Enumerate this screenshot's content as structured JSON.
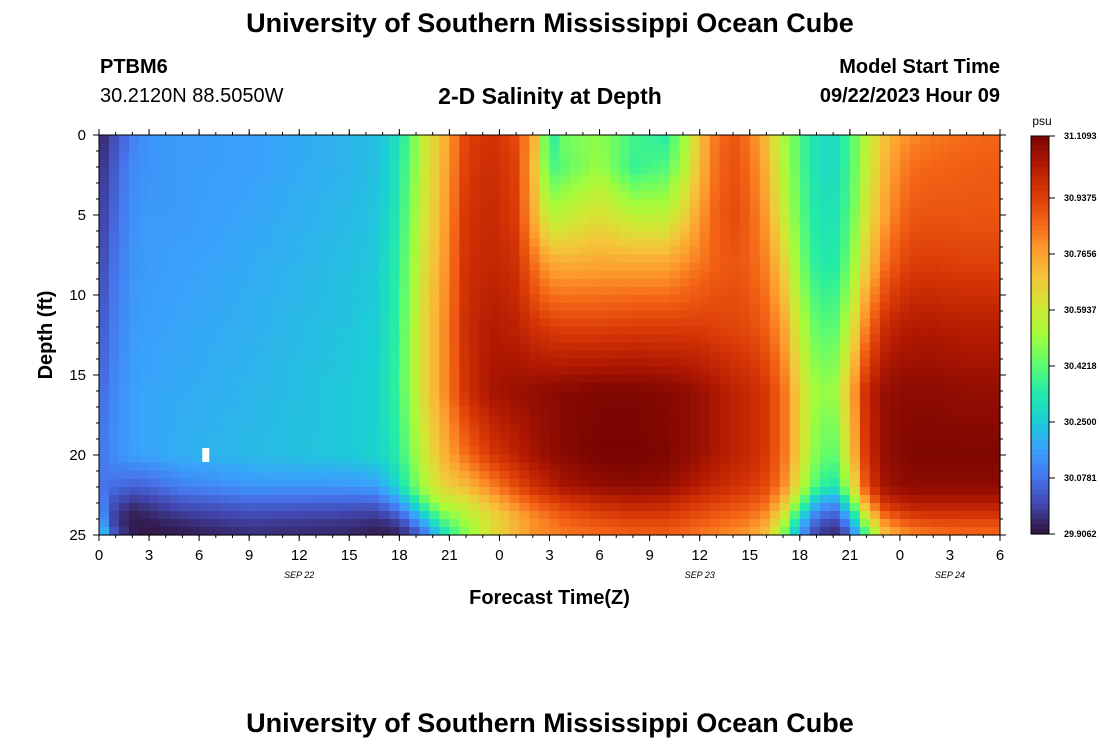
{
  "header": {
    "title": "University of Southern Mississippi Ocean Cube",
    "station_id": "PTBM6",
    "station_coords": "30.2120N  88.5050W",
    "plot_title": "2-D Salinity at Depth",
    "model_start_label": "Model Start Time",
    "model_start_value": "09/22/2023 Hour 09"
  },
  "footer": {
    "title": "University of Southern Mississippi Ocean Cube"
  },
  "chart_data": {
    "type": "heatmap",
    "title": "2-D Salinity at Depth",
    "xlabel": "Forecast Time(Z)",
    "ylabel": "Depth (ft)",
    "x_range_hours": [
      0,
      54
    ],
    "y_range_ft": [
      0,
      25
    ],
    "y_inverted": true,
    "x_tick_labels": [
      "0",
      "3",
      "6",
      "9",
      "12",
      "15",
      "18",
      "21",
      "0",
      "3",
      "6",
      "9",
      "12",
      "15",
      "18",
      "21",
      "0",
      "3",
      "6"
    ],
    "y_tick_labels": [
      "0",
      "5",
      "10",
      "15",
      "20",
      "25"
    ],
    "date_labels": [
      {
        "label": "SEP 22",
        "at_hour": 12
      },
      {
        "label": "SEP 23",
        "at_hour": 36
      },
      {
        "label": "SEP 24",
        "at_hour": 51
      }
    ],
    "colorbar": {
      "unit": "psu",
      "min": 29.9062,
      "max": 31.1093,
      "tick_labels": [
        "31.1093",
        "30.9375",
        "30.7656",
        "30.5937",
        "30.4218",
        "30.2500",
        "30.0781",
        "29.9062"
      ],
      "colormap": [
        "#30123b",
        "#4145ab",
        "#4675ed",
        "#39a2fc",
        "#1bcfd4",
        "#24eca6",
        "#61fc6c",
        "#a4fc3b",
        "#d1e834",
        "#f3c63a",
        "#fe9b2d",
        "#f36315",
        "#d93806",
        "#b11901",
        "#7a0402"
      ]
    },
    "marker": {
      "hour": 6.4,
      "depth_ft": 20,
      "color": "#ffffff"
    },
    "salinity_keyframes": {
      "hours": [
        0,
        1,
        2,
        3,
        5,
        9,
        15,
        16.5,
        17.5,
        18.5,
        19.5,
        20.5,
        22,
        23.5,
        25,
        26,
        27,
        28,
        30,
        32,
        34,
        35,
        36,
        37,
        38,
        39,
        40,
        41,
        42,
        43,
        44,
        45,
        46,
        47,
        48,
        49,
        50,
        52,
        54
      ],
      "depths_ft": [
        0,
        2,
        5,
        8,
        12,
        16,
        20,
        22,
        23,
        24,
        25
      ],
      "values_psu": [
        [
          29.93,
          30.01,
          30.1,
          30.14,
          30.15,
          30.16,
          30.2,
          30.22,
          30.26,
          30.38,
          30.58,
          30.69,
          30.92,
          30.96,
          30.9,
          30.76,
          30.32,
          30.45,
          30.48,
          30.38,
          30.34,
          30.48,
          30.68,
          30.83,
          30.88,
          30.82,
          30.7,
          30.52,
          30.4,
          30.3,
          30.28,
          30.38,
          30.55,
          30.68,
          30.76,
          30.8,
          30.82,
          30.84,
          30.85
        ],
        [
          29.95,
          30.04,
          30.12,
          30.14,
          30.15,
          30.16,
          30.2,
          30.22,
          30.27,
          30.4,
          30.58,
          30.7,
          30.93,
          30.97,
          30.92,
          30.72,
          30.38,
          30.42,
          30.5,
          30.36,
          30.4,
          30.52,
          30.7,
          30.84,
          30.89,
          30.84,
          30.72,
          30.54,
          30.4,
          30.3,
          30.28,
          30.38,
          30.56,
          30.7,
          30.8,
          30.84,
          30.85,
          30.86,
          30.87
        ],
        [
          29.97,
          30.06,
          30.13,
          30.15,
          30.15,
          30.17,
          30.21,
          30.23,
          30.28,
          30.42,
          30.6,
          30.72,
          30.95,
          30.98,
          30.93,
          30.74,
          30.54,
          30.56,
          30.62,
          30.55,
          30.55,
          30.64,
          30.76,
          30.86,
          30.9,
          30.86,
          30.76,
          30.58,
          30.42,
          30.32,
          30.3,
          30.4,
          30.6,
          30.74,
          30.84,
          30.88,
          30.88,
          30.88,
          30.88
        ],
        [
          29.99,
          30.08,
          30.14,
          30.15,
          30.16,
          30.18,
          30.22,
          30.24,
          30.3,
          30.44,
          30.62,
          30.74,
          30.96,
          30.99,
          30.96,
          30.84,
          30.74,
          30.73,
          30.74,
          30.74,
          30.74,
          30.78,
          30.82,
          30.86,
          30.88,
          30.86,
          30.8,
          30.66,
          30.46,
          30.34,
          30.32,
          30.44,
          30.66,
          30.82,
          30.9,
          30.93,
          30.93,
          30.92,
          30.92
        ],
        [
          30.02,
          30.1,
          30.15,
          30.16,
          30.17,
          30.19,
          30.23,
          30.25,
          30.31,
          30.46,
          30.64,
          30.76,
          30.97,
          31.02,
          31.0,
          30.96,
          30.93,
          30.92,
          30.92,
          30.93,
          30.93,
          30.93,
          30.93,
          30.92,
          30.91,
          30.9,
          30.86,
          30.76,
          30.56,
          30.42,
          30.4,
          30.56,
          30.82,
          30.96,
          31.01,
          31.02,
          31.02,
          31.01,
          31.01
        ],
        [
          30.05,
          30.12,
          30.16,
          30.17,
          30.18,
          30.2,
          30.24,
          30.26,
          30.32,
          30.46,
          30.64,
          30.76,
          30.96,
          31.04,
          31.06,
          31.07,
          31.08,
          31.09,
          31.1,
          31.1,
          31.09,
          31.08,
          31.06,
          31.03,
          31.0,
          30.98,
          30.94,
          30.84,
          30.64,
          30.5,
          30.48,
          30.7,
          30.98,
          31.06,
          31.08,
          31.08,
          31.08,
          31.07,
          31.07
        ],
        [
          30.08,
          30.13,
          30.16,
          30.17,
          30.19,
          30.21,
          30.24,
          30.26,
          30.3,
          30.42,
          30.58,
          30.7,
          30.84,
          30.94,
          31.0,
          31.04,
          31.07,
          31.09,
          31.11,
          31.11,
          31.1,
          31.08,
          31.06,
          31.03,
          31.0,
          30.98,
          30.94,
          30.84,
          30.64,
          30.46,
          30.4,
          30.64,
          30.96,
          31.06,
          31.09,
          31.1,
          31.1,
          31.1,
          31.1
        ],
        [
          30.08,
          30.06,
          30.04,
          30.05,
          30.1,
          30.14,
          30.14,
          30.16,
          30.22,
          30.36,
          30.52,
          30.64,
          30.7,
          30.8,
          30.9,
          30.96,
          31.0,
          31.04,
          31.07,
          31.08,
          31.07,
          31.04,
          31.01,
          30.98,
          30.96,
          30.94,
          30.9,
          30.8,
          30.58,
          30.38,
          30.3,
          30.54,
          30.9,
          31.04,
          31.07,
          31.08,
          31.08,
          31.08,
          31.08
        ],
        [
          30.12,
          30.0,
          29.96,
          29.98,
          30.02,
          30.05,
          30.04,
          30.04,
          30.1,
          30.22,
          30.4,
          30.54,
          30.6,
          30.7,
          30.8,
          30.86,
          30.9,
          30.94,
          30.98,
          31.0,
          30.99,
          30.96,
          30.94,
          30.92,
          30.9,
          30.88,
          30.84,
          30.7,
          30.44,
          30.2,
          30.12,
          30.34,
          30.76,
          30.95,
          31.0,
          31.02,
          31.02,
          31.02,
          31.02
        ],
        [
          30.18,
          29.96,
          29.92,
          29.93,
          29.96,
          29.99,
          29.97,
          29.96,
          29.98,
          30.06,
          30.22,
          30.4,
          30.52,
          30.62,
          30.72,
          30.78,
          30.82,
          30.86,
          30.9,
          30.92,
          30.92,
          30.9,
          30.88,
          30.86,
          30.84,
          30.82,
          30.76,
          30.58,
          30.26,
          30.06,
          30.0,
          30.16,
          30.56,
          30.8,
          30.88,
          30.91,
          30.92,
          30.92,
          30.92
        ],
        [
          30.3,
          30.0,
          29.93,
          29.91,
          29.92,
          29.95,
          29.94,
          29.92,
          29.92,
          29.96,
          30.06,
          30.26,
          30.46,
          30.62,
          30.72,
          30.78,
          30.8,
          30.82,
          30.84,
          30.86,
          30.86,
          30.84,
          30.82,
          30.8,
          30.78,
          30.76,
          30.68,
          30.46,
          30.14,
          29.98,
          29.94,
          30.02,
          30.38,
          30.66,
          30.76,
          30.8,
          30.82,
          30.84,
          30.84
        ]
      ]
    }
  }
}
